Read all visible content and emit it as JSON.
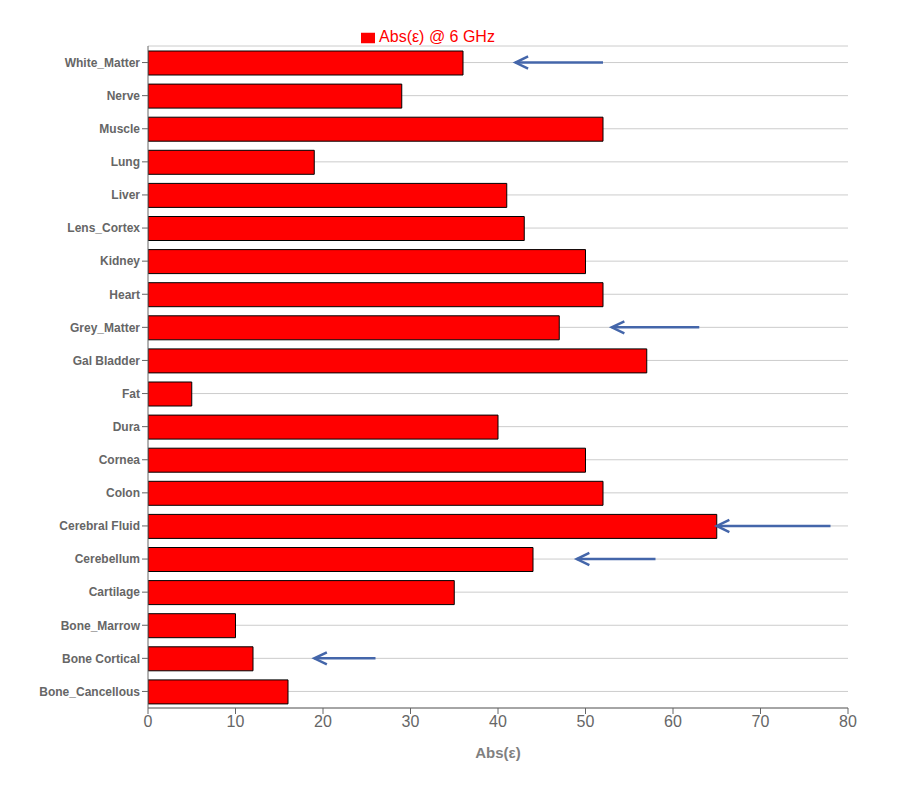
{
  "chart_data": {
    "type": "bar",
    "orientation": "horizontal",
    "xlabel": "Abs(ε)",
    "categories": [
      "White_Matter",
      "Nerve",
      "Muscle",
      "Lung",
      "Liver",
      "Lens_Cortex",
      "Kidney",
      "Heart",
      "Grey_Matter",
      "Gal Bladder",
      "Fat",
      "Dura",
      "Cornea",
      "Colon",
      "Cerebral Fluid",
      "Cerebellum",
      "Cartilage",
      "Bone_Marrow",
      "Bone Cortical",
      "Bone_Cancellous"
    ],
    "series": [
      {
        "name": "Abs(ε) @ 6 GHz",
        "color": "#FF0000",
        "values": [
          36,
          29,
          52,
          19,
          41,
          43,
          50,
          52,
          47,
          57,
          5,
          40,
          50,
          52,
          65,
          44,
          35,
          10,
          12,
          16
        ]
      }
    ],
    "xlim": [
      0,
      80
    ],
    "xticks": [
      0,
      10,
      20,
      30,
      40,
      50,
      60,
      70,
      80
    ],
    "grid": true,
    "legend": "top",
    "arrows": [
      {
        "category": "White_Matter",
        "x_tip": 42,
        "x_tail": 52,
        "color": "#4466AA"
      },
      {
        "category": "Grey_Matter",
        "x_tip": 53,
        "x_tail": 63,
        "color": "#4466AA"
      },
      {
        "category": "Cerebral Fluid",
        "x_tip": 65,
        "x_tail": 78,
        "color": "#4466AA"
      },
      {
        "category": "Cerebellum",
        "x_tip": 49,
        "x_tail": 58,
        "color": "#4466AA"
      },
      {
        "category": "Bone Cortical",
        "x_tip": 19,
        "x_tail": 26,
        "color": "#4466AA"
      }
    ]
  }
}
